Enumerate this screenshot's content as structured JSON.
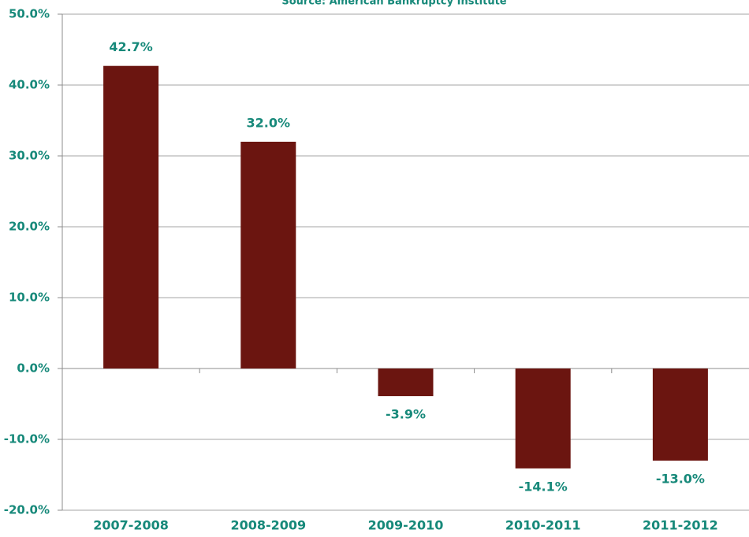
{
  "chart_data": {
    "type": "bar",
    "subtitle": "Source: American Bankruptcy Institute",
    "categories": [
      "2007-2008",
      "2008-2009",
      "2009-2010",
      "2010-2011",
      "2011-2012"
    ],
    "values": [
      42.7,
      32.0,
      -3.9,
      -14.1,
      -13.0
    ],
    "value_labels": [
      "42.7%",
      "32.0%",
      "-3.9%",
      "-14.1%",
      "-13.0%"
    ],
    "color": "#6b1510",
    "ylim": [
      -20,
      50
    ],
    "yticks": [
      {
        "value": -20,
        "label": "-20.0%"
      },
      {
        "value": -10,
        "label": "-10.0%"
      },
      {
        "value": 0,
        "label": "0.0%"
      },
      {
        "value": 10,
        "label": "10.0%"
      },
      {
        "value": 20,
        "label": "20.0%"
      },
      {
        "value": 30,
        "label": "30.0%"
      },
      {
        "value": 40,
        "label": "40.0%"
      },
      {
        "value": 50,
        "label": "50.0%"
      }
    ],
    "grid": true
  }
}
